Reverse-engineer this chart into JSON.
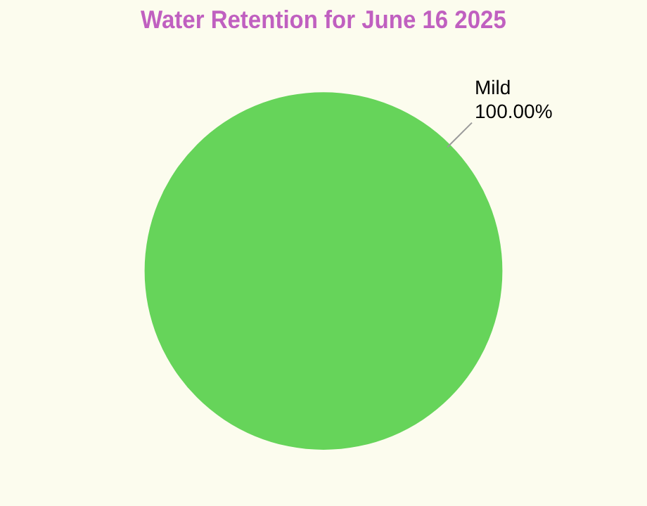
{
  "chart_data": {
    "type": "pie",
    "title": "Water Retention for June 16 2025",
    "categories": [
      "Mild"
    ],
    "values": [
      100
    ],
    "colors": [
      "#66d45a"
    ],
    "value_labels": [
      "100.00%"
    ],
    "legend": false
  }
}
